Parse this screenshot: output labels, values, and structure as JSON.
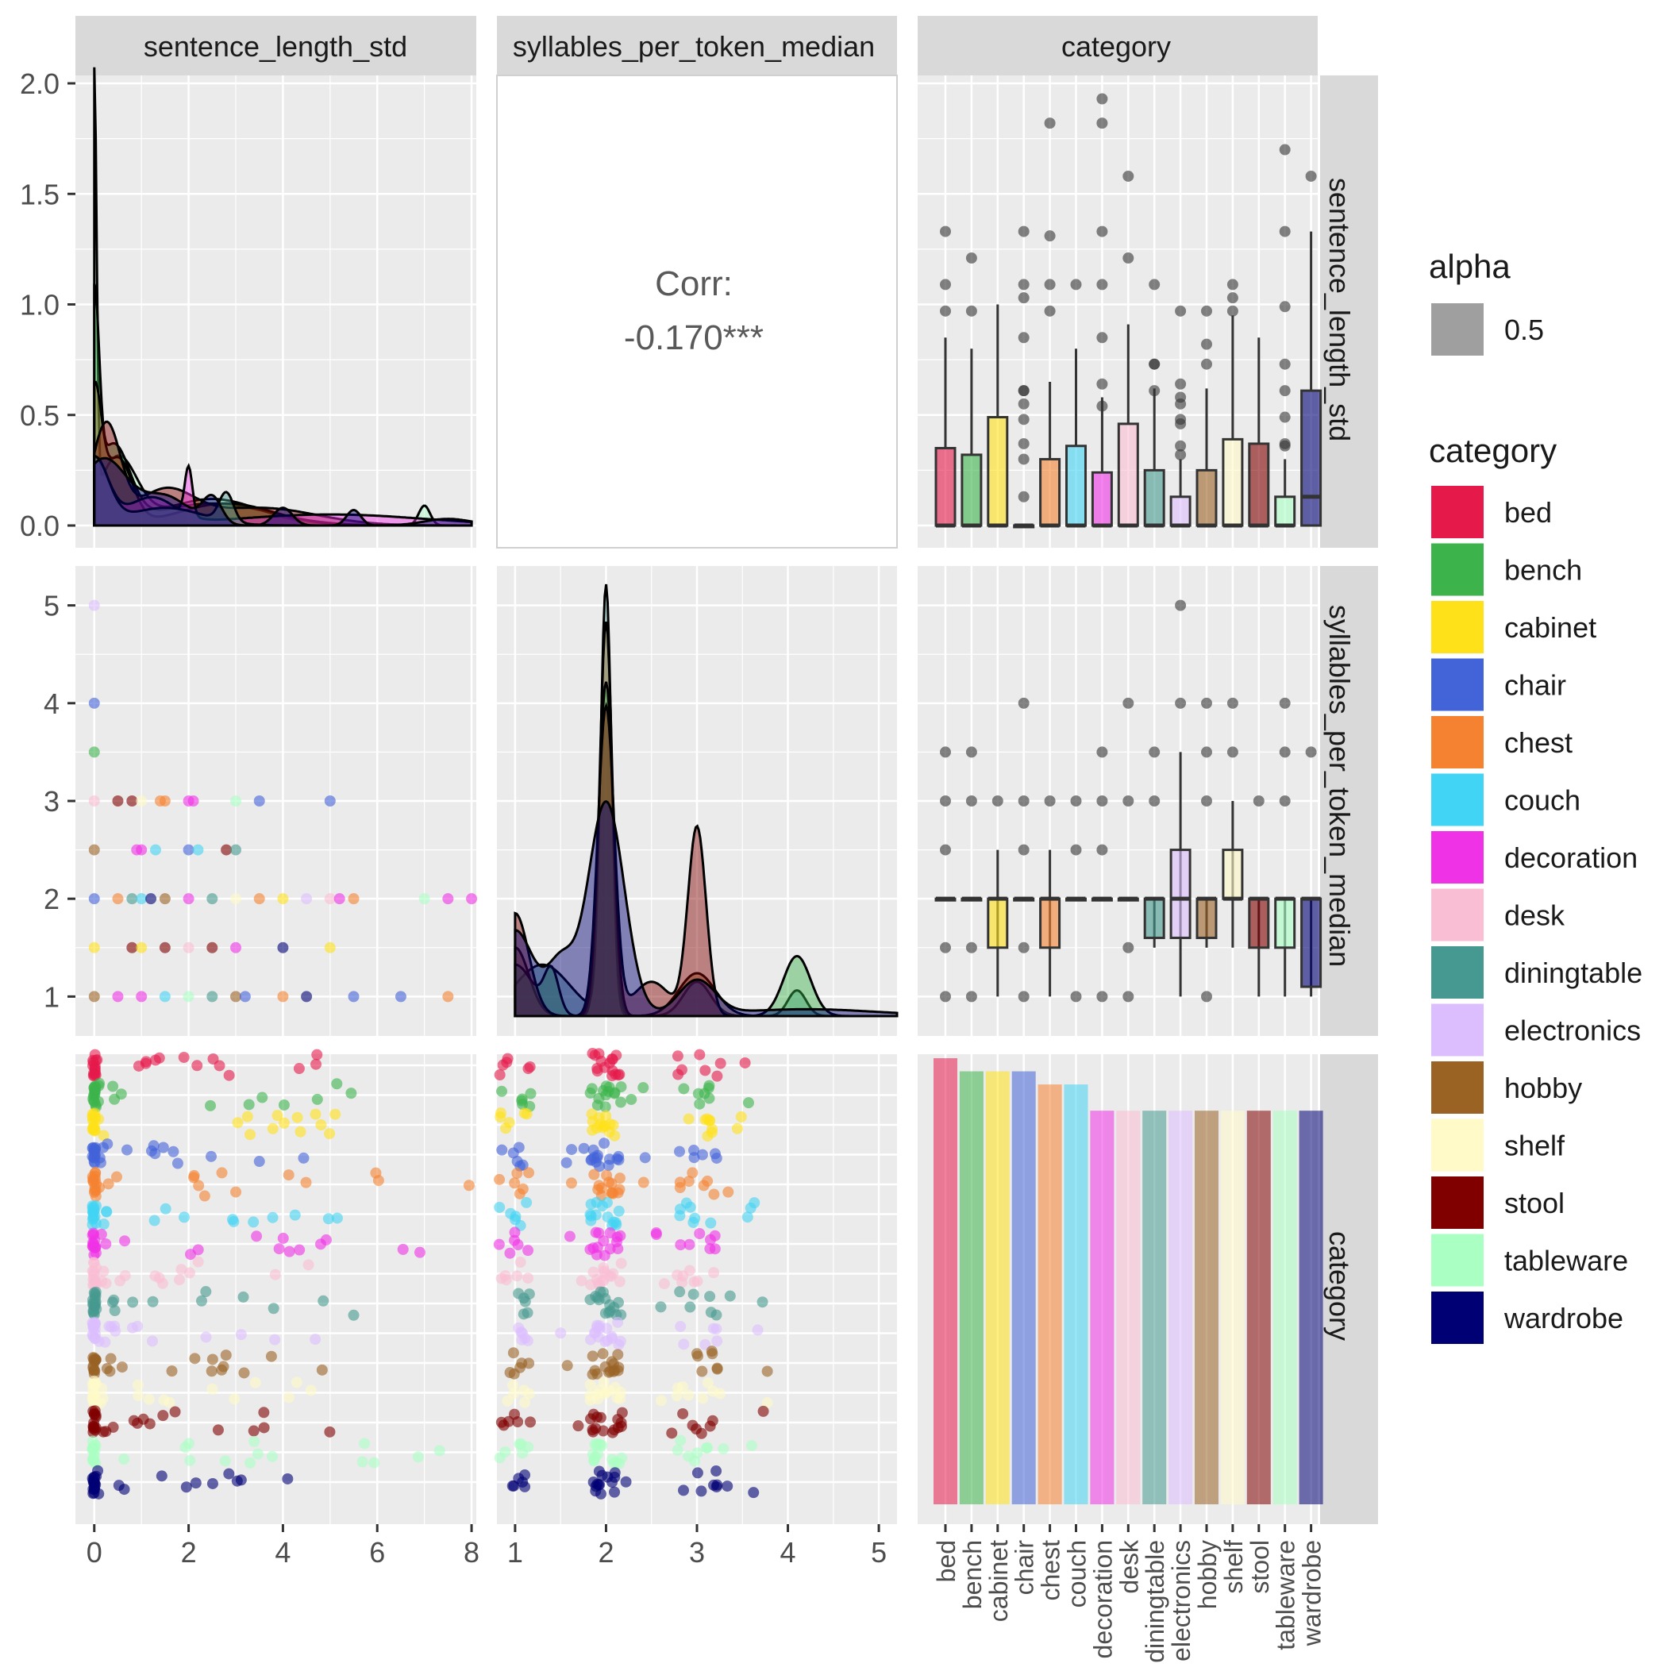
{
  "variables": [
    "sentence_length_std",
    "syllables_per_token_median",
    "category"
  ],
  "strip_labels": {
    "top": [
      "sentence_length_std",
      "syllables_per_token_median",
      "category"
    ],
    "right": [
      "sentence_length_std",
      "syllables_per_token_median",
      "category"
    ]
  },
  "correlation": {
    "label": "Corr:",
    "value": "-0.170***"
  },
  "legend": {
    "alpha_title": "alpha",
    "alpha_value": "0.5",
    "alpha_color": "#7f7f7f",
    "category_title": "category",
    "items": [
      {
        "label": "bed",
        "color": "#E6194B"
      },
      {
        "label": "bench",
        "color": "#3CB44B"
      },
      {
        "label": "cabinet",
        "color": "#FFE119"
      },
      {
        "label": "chair",
        "color": "#4363D8"
      },
      {
        "label": "chest",
        "color": "#F58231"
      },
      {
        "label": "couch",
        "color": "#42D4F4"
      },
      {
        "label": "decoration",
        "color": "#F032E6"
      },
      {
        "label": "desk",
        "color": "#FABED4"
      },
      {
        "label": "diningtable",
        "color": "#469990"
      },
      {
        "label": "electronics",
        "color": "#DCBEFF"
      },
      {
        "label": "hobby",
        "color": "#9A6324"
      },
      {
        "label": "shelf",
        "color": "#FFFAC8"
      },
      {
        "label": "stool",
        "color": "#800000"
      },
      {
        "label": "tableware",
        "color": "#AAFFC3"
      },
      {
        "label": "wardrobe",
        "color": "#000075"
      }
    ]
  },
  "chart_data": [
    {
      "type": "area",
      "panel": "density sentence_length_std",
      "xlabel": "sentence_length_std",
      "xlim": [
        -0.4,
        8.1
      ],
      "ylim": [
        0,
        2.0
      ],
      "yticks": [
        0.0,
        0.5,
        1.0,
        1.5,
        2.0
      ],
      "ytick_labels": [
        "0.0",
        "0.5",
        "1.0",
        "1.5",
        "2.0"
      ],
      "peaks": [
        {
          "category": "tableware",
          "x": 0.0,
          "y": 1.93
        },
        {
          "category": "bench",
          "x": 0.0,
          "y": 0.9
        },
        {
          "category": "hobby",
          "x": 0.0,
          "y": 0.57
        },
        {
          "category": "stool",
          "x": 0.3,
          "y": 0.45
        },
        {
          "category": "wardrobe",
          "x": 0.0,
          "y": 0.3
        },
        {
          "category": "decoration",
          "x": 2.0,
          "y": 0.23
        },
        {
          "category": "tableware",
          "x": 7.0,
          "y": 0.09
        }
      ]
    },
    {
      "type": "bar",
      "panel": "boxplot sentence_length_std by category",
      "ylim": [
        0,
        2.0
      ],
      "categories": [
        "bed",
        "bench",
        "cabinet",
        "chair",
        "chest",
        "couch",
        "decoration",
        "desk",
        "diningtable",
        "electronics",
        "hobby",
        "shelf",
        "stool",
        "tableware",
        "wardrobe"
      ],
      "median": [
        0,
        0,
        0,
        0,
        0,
        0,
        0,
        0,
        0,
        0,
        0,
        0,
        0,
        0,
        0.13
      ],
      "q1": [
        0,
        0,
        0,
        0,
        0,
        0,
        0,
        0,
        0,
        0,
        0,
        0,
        0,
        0,
        0
      ],
      "q3": [
        0.35,
        0.32,
        0.49,
        0,
        0.3,
        0.36,
        0.24,
        0.46,
        0.25,
        0.13,
        0.25,
        0.39,
        0.37,
        0.13,
        0.61
      ],
      "whisker_high": [
        0.85,
        0.8,
        1.0,
        0,
        0.65,
        0.8,
        0.58,
        0.91,
        0.62,
        0.3,
        0.62,
        0.95,
        0.85,
        0.3,
        1.33
      ],
      "outliers": [
        [
          1.33,
          1.09,
          0.97
        ],
        [
          1.21,
          0.97
        ],
        [],
        [
          1.33,
          1.09,
          1.03,
          0.85,
          0.61,
          0.61,
          0.55,
          0.48,
          0.37,
          0.3,
          0.13
        ],
        [
          1.82,
          1.31,
          1.09,
          0.97
        ],
        [
          1.09
        ],
        [
          1.93,
          1.82,
          1.33,
          1.09,
          0.85,
          0.64,
          0.54
        ],
        [
          1.58,
          1.21
        ],
        [
          1.09,
          0.73,
          0.73,
          0.61
        ],
        [
          0.97,
          0.64,
          0.58,
          0.55,
          0.48,
          0.46,
          0.36,
          0.32
        ],
        [
          0.97,
          0.82,
          0.73
        ],
        [
          1.09,
          1.03,
          0.97
        ],
        [],
        [
          1.7,
          1.33,
          0.99,
          0.73,
          0.61,
          0.49,
          0.37,
          0.36
        ],
        [
          1.58
        ]
      ]
    },
    {
      "type": "scatter",
      "panel": "sentence_length_std vs syllables_per_token_median",
      "xlim": [
        -0.4,
        8.1
      ],
      "ylim": [
        0.8,
        5.2
      ],
      "xticks": [
        0,
        2,
        4,
        6,
        8
      ],
      "xtick_labels": [
        "0",
        "2",
        "4",
        "6",
        "8"
      ],
      "yticks": [
        1,
        2,
        3,
        4,
        5
      ],
      "ytick_labels": [
        "1",
        "2",
        "3",
        "4",
        "5"
      ],
      "points": [
        [
          0,
          5,
          "electronics"
        ],
        [
          0,
          4,
          "chair"
        ],
        [
          0,
          3.5,
          "bench"
        ],
        [
          0,
          3,
          "desk"
        ],
        [
          0.5,
          3,
          "stool"
        ],
        [
          0.8,
          3,
          "stool"
        ],
        [
          1,
          3,
          "shelf"
        ],
        [
          1.4,
          3,
          "chest"
        ],
        [
          1.5,
          3,
          "chest"
        ],
        [
          2,
          3,
          "decoration"
        ],
        [
          2.1,
          3,
          "decoration"
        ],
        [
          3,
          3,
          "tableware"
        ],
        [
          3.5,
          3,
          "chair"
        ],
        [
          5,
          3,
          "chair"
        ],
        [
          0,
          2.5,
          "hobby"
        ],
        [
          0.9,
          2.5,
          "decoration"
        ],
        [
          1,
          2.5,
          "decoration"
        ],
        [
          1.3,
          2.5,
          "couch"
        ],
        [
          2,
          2.5,
          "chair"
        ],
        [
          2.2,
          2.5,
          "couch"
        ],
        [
          2.8,
          2.5,
          "stool"
        ],
        [
          3,
          2.5,
          "diningtable"
        ],
        [
          0,
          2,
          "chair"
        ],
        [
          0.5,
          2,
          "chest"
        ],
        [
          0.8,
          2,
          "diningtable"
        ],
        [
          1,
          2,
          "couch"
        ],
        [
          1.2,
          2,
          "wardrobe"
        ],
        [
          1.5,
          2,
          "hobby"
        ],
        [
          2,
          2,
          "decoration"
        ],
        [
          2.5,
          2,
          "diningtable"
        ],
        [
          3,
          2,
          "shelf"
        ],
        [
          3.5,
          2,
          "chest"
        ],
        [
          4,
          2,
          "cabinet"
        ],
        [
          4.5,
          2,
          "electronics"
        ],
        [
          5,
          2,
          "desk"
        ],
        [
          5.2,
          2,
          "decoration"
        ],
        [
          5.5,
          2,
          "chest"
        ],
        [
          7,
          2,
          "tableware"
        ],
        [
          7.5,
          2,
          "decoration"
        ],
        [
          8,
          2,
          "decoration"
        ],
        [
          0,
          1.5,
          "cabinet"
        ],
        [
          0.8,
          1.5,
          "stool"
        ],
        [
          1,
          1.5,
          "cabinet"
        ],
        [
          1.5,
          1.5,
          "stool"
        ],
        [
          2,
          1.5,
          "desk"
        ],
        [
          2.5,
          1.5,
          "stool"
        ],
        [
          3,
          1.5,
          "decoration"
        ],
        [
          4,
          1.5,
          "wardrobe"
        ],
        [
          5,
          1.5,
          "cabinet"
        ],
        [
          0,
          1,
          "hobby"
        ],
        [
          0.5,
          1,
          "decoration"
        ],
        [
          1,
          1,
          "decoration"
        ],
        [
          1.5,
          1,
          "couch"
        ],
        [
          2,
          1,
          "tableware"
        ],
        [
          2.5,
          1,
          "diningtable"
        ],
        [
          3,
          1,
          "hobby"
        ],
        [
          3.2,
          1,
          "chair"
        ],
        [
          4,
          1,
          "chest"
        ],
        [
          4.5,
          1,
          "wardrobe"
        ],
        [
          5.5,
          1,
          "chair"
        ],
        [
          6.5,
          1,
          "chair"
        ],
        [
          7.5,
          1,
          "chest"
        ]
      ]
    },
    {
      "type": "area",
      "panel": "density syllables_per_token_median",
      "xlim": [
        0.8,
        5.2
      ],
      "xticks": [
        1,
        2,
        3,
        4,
        5
      ],
      "xtick_labels": [
        "1",
        "2",
        "3",
        "4",
        "5"
      ],
      "peaks": [
        {
          "category": "diningtable",
          "x": 2.0,
          "y": 5.0
        },
        {
          "category": "hobby",
          "x": 2.0,
          "y": 4.6
        },
        {
          "category": "wardrobe",
          "x": 2.0,
          "y": 2.5
        },
        {
          "category": "stool",
          "x": 3.0,
          "y": 2.2
        },
        {
          "category": "tableware",
          "x": 4.1,
          "y": 0.7
        }
      ]
    },
    {
      "type": "bar",
      "panel": "boxplot syllables_per_token_median by category",
      "ylim": [
        0.8,
        5.2
      ],
      "categories": [
        "bed",
        "bench",
        "cabinet",
        "chair",
        "chest",
        "couch",
        "decoration",
        "desk",
        "diningtable",
        "electronics",
        "hobby",
        "shelf",
        "stool",
        "tableware",
        "wardrobe"
      ],
      "median": [
        2,
        2,
        2,
        2,
        2,
        2,
        2,
        2,
        2,
        2,
        2,
        2,
        2,
        2,
        2
      ],
      "q1": [
        2,
        2,
        1.5,
        2,
        1.5,
        2,
        2,
        2,
        1.6,
        1.6,
        1.6,
        2,
        1.5,
        1.5,
        1.1
      ],
      "q3": [
        2,
        2,
        2,
        2,
        2,
        2,
        2,
        2,
        2,
        2.5,
        2,
        2.5,
        2,
        2,
        2
      ],
      "whisker_low": [
        2,
        2,
        1,
        2,
        1,
        2,
        2,
        2,
        1.5,
        1,
        1.5,
        1.5,
        1,
        1,
        1
      ],
      "whisker_high": [
        2,
        2,
        2.5,
        2,
        2.5,
        2,
        2,
        2,
        2,
        3.5,
        2,
        3,
        2,
        2,
        2
      ],
      "outliers": [
        [
          3.5,
          3,
          2.5,
          1.5,
          1
        ],
        [
          3.5,
          3,
          1.5,
          1
        ],
        [
          3
        ],
        [
          4,
          3,
          2.5,
          1.5,
          1
        ],
        [
          3
        ],
        [
          3,
          2.5,
          1
        ],
        [
          3.5,
          3,
          2.5,
          1
        ],
        [
          4,
          3,
          1.5,
          1
        ],
        [
          3.5,
          3
        ],
        [
          5,
          4
        ],
        [
          4,
          3.5,
          3,
          1
        ],
        [
          4,
          3.5
        ],
        [
          3
        ],
        [
          4,
          3.5,
          3
        ],
        [
          3.5
        ]
      ]
    },
    {
      "type": "scatter",
      "panel": "jitter category vs sentence_length_std",
      "xlim": [
        -0.4,
        8.1
      ],
      "categories": [
        "bed",
        "bench",
        "cabinet",
        "chair",
        "chest",
        "couch",
        "decoration",
        "desk",
        "diningtable",
        "electronics",
        "hobby",
        "shelf",
        "stool",
        "tableware",
        "wardrobe"
      ]
    },
    {
      "type": "scatter",
      "panel": "jitter category vs syllables_per_token_median",
      "xlim": [
        0.8,
        5.2
      ],
      "categories": [
        "bed",
        "bench",
        "cabinet",
        "chair",
        "chest",
        "couch",
        "decoration",
        "desk",
        "diningtable",
        "electronics",
        "hobby",
        "shelf",
        "stool",
        "tableware",
        "wardrobe"
      ]
    },
    {
      "type": "bar",
      "panel": "category counts",
      "categories": [
        "bed",
        "bench",
        "cabinet",
        "chair",
        "chest",
        "couch",
        "decoration",
        "desk",
        "diningtable",
        "electronics",
        "hobby",
        "shelf",
        "stool",
        "tableware",
        "wardrobe"
      ],
      "values": [
        34,
        33,
        33,
        33,
        32,
        32,
        30,
        30,
        30,
        30,
        30,
        30,
        30,
        30,
        30
      ]
    }
  ]
}
